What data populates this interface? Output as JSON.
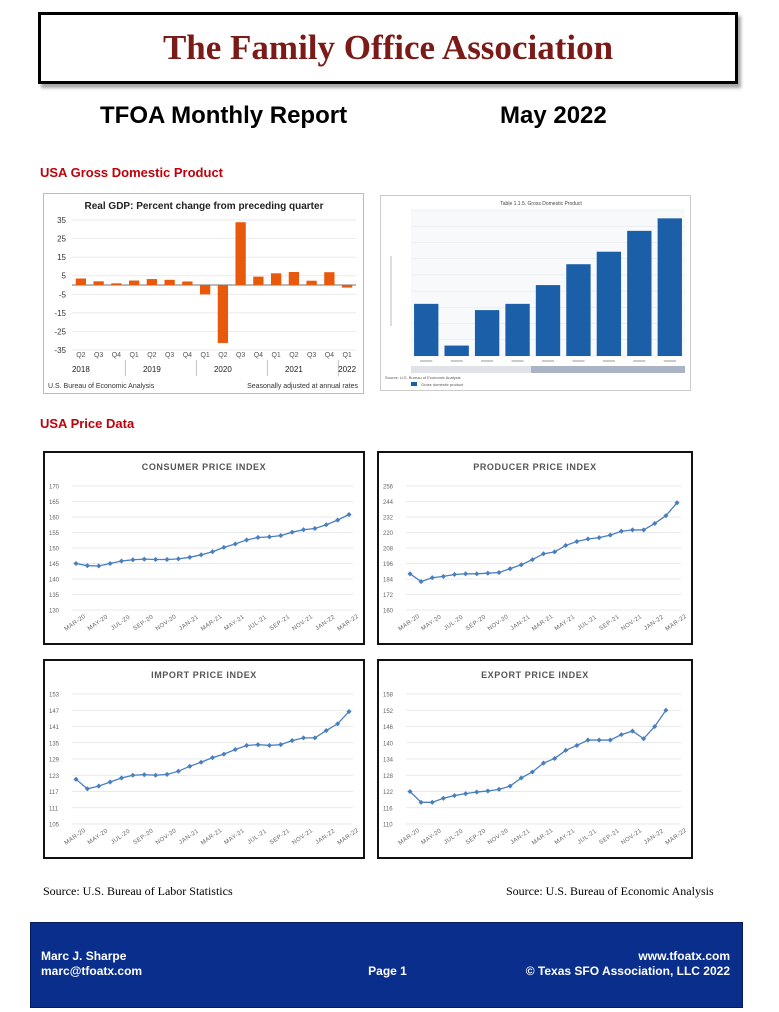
{
  "header": {
    "org_title": "The Family Office Association",
    "report_title": "TFOA Monthly Report",
    "report_date": "May 2022"
  },
  "sections": {
    "gdp_heading": "USA Gross Domestic Product",
    "price_heading": "USA Price Data"
  },
  "colors": {
    "title_red": "#7a1b17",
    "section_red": "#c0000a",
    "gdp_bar_orange": "#e8590c",
    "gdp_table_bar_blue": "#1a5fa8",
    "index_line_blue": "#4a7fbf",
    "footer_blue": "#0a2e8c"
  },
  "chart_data": [
    {
      "id": "gdp_change",
      "type": "bar",
      "title": "Real GDP: Percent change from preceding quarter",
      "categories": [
        "Q2",
        "Q3",
        "Q4",
        "Q1",
        "Q2",
        "Q3",
        "Q4",
        "Q1",
        "Q2",
        "Q3",
        "Q4",
        "Q1",
        "Q2",
        "Q3",
        "Q4",
        "Q1"
      ],
      "year_labels": [
        "2018",
        "2019",
        "2020",
        "2021",
        "2022"
      ],
      "values": [
        3.5,
        2.0,
        0.9,
        2.4,
        3.2,
        2.8,
        1.9,
        -5.1,
        -31.2,
        33.8,
        4.5,
        6.3,
        7.0,
        2.3,
        6.9,
        -1.4
      ],
      "yticks": [
        "35",
        "25",
        "15",
        "5",
        "-5",
        "-15",
        "-25",
        "-35"
      ],
      "ylim": [
        -35,
        35
      ],
      "source_left": "U.S. Bureau of Economic Analysis",
      "source_right": "Seasonally adjusted at annual rates"
    },
    {
      "id": "gdp_table",
      "type": "bar",
      "title": "Table 1.1.5. Gross Domestic Product",
      "values": [
        21.5,
        19.5,
        21.2,
        21.5,
        22.4,
        23.4,
        24.0,
        25.0,
        25.6
      ],
      "ylim": [
        19,
        26
      ],
      "legend": "Gross domestic product",
      "source": "Source: U.S. Bureau of Economic Analysis"
    },
    {
      "id": "cpi",
      "type": "line",
      "title": "CONSUMER PRICE INDEX",
      "xlabels": [
        "MAR-20",
        "MAY-20",
        "JUL-20",
        "SEP-20",
        "NOV-20",
        "JAN-21",
        "MAR-21",
        "MAY-21",
        "JUL-21",
        "SEP-21",
        "NOV-21",
        "JAN-22",
        "MAR-22"
      ],
      "yticks": [
        "170",
        "165",
        "160",
        "155",
        "150",
        "145",
        "140",
        "135",
        "130"
      ],
      "ylim": [
        130,
        170
      ],
      "values": [
        145.0,
        144.3,
        144.2,
        145.0,
        145.8,
        146.2,
        146.4,
        146.3,
        146.3,
        146.5,
        147.0,
        147.8,
        148.8,
        150.2,
        151.3,
        152.6,
        153.4,
        153.6,
        154.0,
        155.1,
        155.9,
        156.3,
        157.5,
        159.0,
        160.8
      ]
    },
    {
      "id": "ppi",
      "type": "line",
      "title": "PRODUCER PRICE INDEX",
      "xlabels": [
        "MAR-20",
        "MAY-20",
        "JUL-20",
        "SEP-20",
        "NOV-20",
        "JAN-21",
        "MAR-21",
        "MAY-21",
        "JUL-21",
        "SEP-21",
        "NOV-21",
        "JAN-22",
        "MAR-22"
      ],
      "yticks": [
        "256",
        "244",
        "232",
        "220",
        "208",
        "196",
        "184",
        "172",
        "160"
      ],
      "ylim": [
        160,
        256
      ],
      "values": [
        188,
        182,
        185,
        186,
        187.5,
        188,
        188,
        188.5,
        189,
        192,
        195,
        199,
        203.5,
        205,
        210,
        213,
        215,
        216,
        218,
        221,
        222,
        222,
        227,
        233,
        243
      ]
    },
    {
      "id": "import",
      "type": "line",
      "title": "IMPORT PRICE INDEX",
      "xlabels": [
        "MAR-20",
        "MAY-20",
        "JUL-20",
        "SEP-20",
        "NOV-20",
        "JAN-21",
        "MAR-21",
        "MAY-21",
        "JUL-21",
        "SEP-21",
        "NOV-21",
        "JAN-22",
        "MAR-22"
      ],
      "yticks": [
        "153",
        "147",
        "141",
        "135",
        "129",
        "123",
        "117",
        "111",
        "105"
      ],
      "ylim": [
        105,
        153
      ],
      "values": [
        121.5,
        118,
        119,
        120.5,
        122,
        123,
        123.2,
        123,
        123.3,
        124.5,
        126.3,
        127.8,
        129.5,
        130.8,
        132.5,
        134,
        134.3,
        134,
        134.3,
        135.8,
        136.8,
        136.8,
        139.5,
        142,
        146.5
      ]
    },
    {
      "id": "export",
      "type": "line",
      "title": "EXPORT PRICE INDEX",
      "xlabels": [
        "MAR-20",
        "MAY-20",
        "JUL-20",
        "SEP-20",
        "NOV-20",
        "JAN-21",
        "MAR-21",
        "MAY-21",
        "JUL-21",
        "SEP-21",
        "NOV-21",
        "JAN-22",
        "MAR-22"
      ],
      "yticks": [
        "158",
        "152",
        "146",
        "140",
        "134",
        "128",
        "122",
        "116",
        "110"
      ],
      "ylim": [
        110,
        158
      ],
      "values": [
        122,
        118,
        118,
        119.5,
        120.5,
        121.2,
        121.8,
        122.2,
        122.8,
        124,
        127,
        129.2,
        132.5,
        134.2,
        137.2,
        139,
        141,
        141,
        141,
        143,
        144.3,
        141.5,
        146,
        152,
        null
      ]
    }
  ],
  "sources": {
    "left": "Source: U.S. Bureau of Labor Statistics",
    "right": "Source: U.S. Bureau of Economic Analysis"
  },
  "footer": {
    "name": "Marc J. Sharpe",
    "email": "marc@tfoatx.com",
    "page": "Page 1",
    "website": "www.tfoatx.com",
    "copyright": "© Texas SFO Association, LLC 2022"
  }
}
